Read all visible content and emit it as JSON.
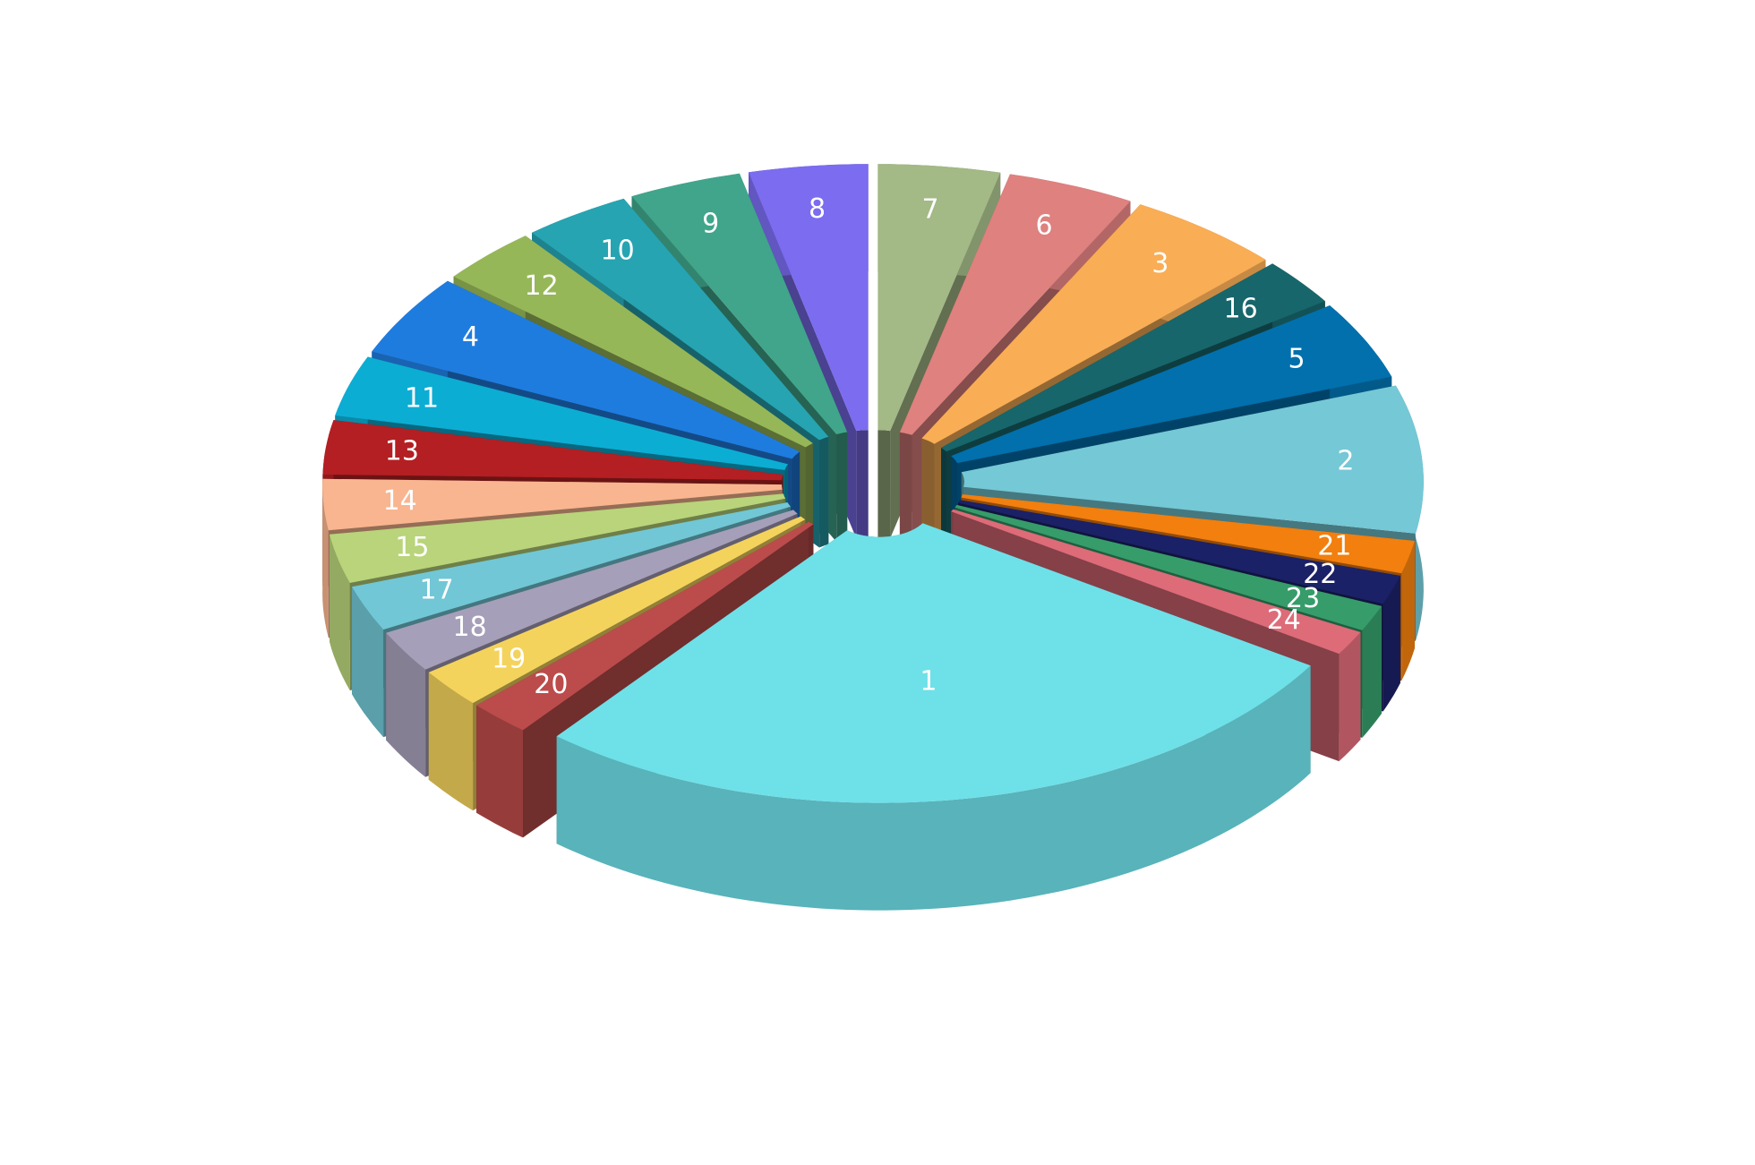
{
  "chart_data": {
    "type": "pie3d",
    "categories": [
      "7",
      "6",
      "3",
      "16",
      "5",
      "2",
      "21",
      "22",
      "23",
      "24",
      "1",
      "20",
      "19",
      "18",
      "17",
      "15",
      "14",
      "13",
      "11",
      "4",
      "12",
      "10",
      "9",
      "8"
    ],
    "values": [
      4.3,
      4.5,
      5.5,
      2.9,
      4.8,
      9,
      2,
      1.8,
      1.6,
      1.5,
      30,
      2.2,
      2.4,
      2.6,
      2.8,
      3,
      3.1,
      3.3,
      3.7,
      5,
      3.5,
      3.8,
      4,
      4.2
    ],
    "colors": [
      "#a3b986",
      "#de817f",
      "#f9ad55",
      "#17666b",
      "#0170ad",
      "#75c8d5",
      "#f27f0e",
      "#1b2166",
      "#369c6a",
      "#dd6b78",
      "#6ee0e8",
      "#bb4c4b",
      "#f4d35d",
      "#a69fb9",
      "#71c7d5",
      "#b9d47a",
      "#f9b58f",
      "#b31f22",
      "#0cadd3",
      "#1f7cdf",
      "#96b758",
      "#26a4b1",
      "#40a58b",
      "#7b6cf0"
    ]
  }
}
